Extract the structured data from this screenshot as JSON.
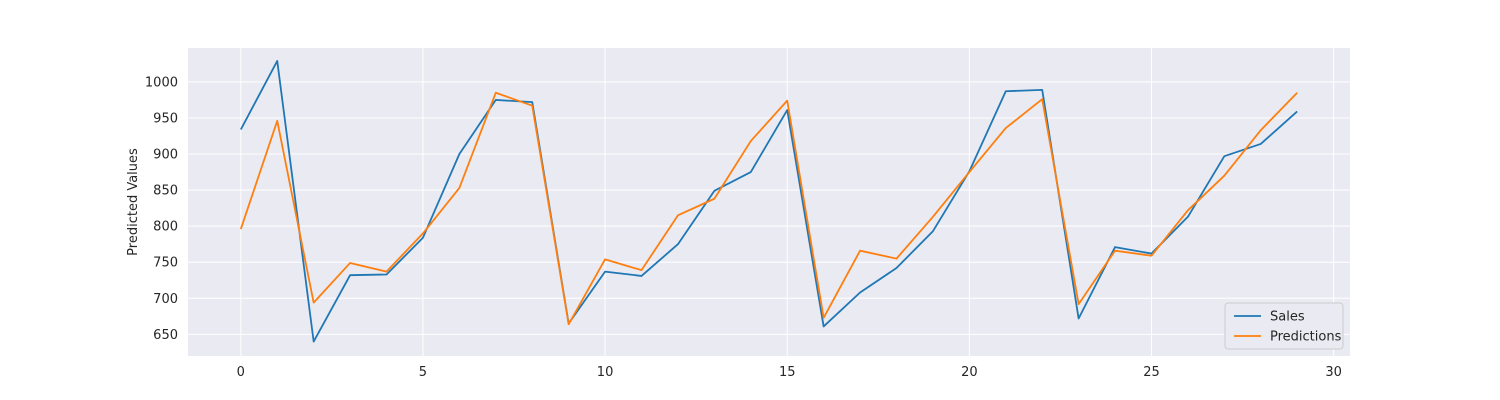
{
  "chart_data": {
    "type": "line",
    "title": "",
    "xlabel": "",
    "ylabel": "Predicted Values",
    "xlim": [
      -1.45,
      30.45
    ],
    "ylim": [
      620,
      1047
    ],
    "xticks": [
      0,
      5,
      10,
      15,
      20,
      25,
      30
    ],
    "yticks": [
      650,
      700,
      750,
      800,
      850,
      900,
      950,
      1000
    ],
    "grid": true,
    "legend_position": "lower-right",
    "x": [
      0,
      1,
      2,
      3,
      4,
      5,
      6,
      7,
      8,
      9,
      10,
      11,
      12,
      13,
      14,
      15,
      16,
      17,
      18,
      19,
      20,
      21,
      22,
      23,
      24,
      25,
      26,
      27,
      28,
      29
    ],
    "series": [
      {
        "name": "Sales",
        "color": "#1f77b4",
        "values": [
          934,
          1029,
          640,
          732,
          733,
          784,
          900,
          975,
          972,
          665,
          737,
          731,
          775,
          849,
          875,
          961,
          661,
          708,
          742,
          793,
          876,
          987,
          989,
          672,
          771,
          762,
          813,
          897,
          914,
          959
        ]
      },
      {
        "name": "Predictions",
        "color": "#ff7f0e",
        "values": [
          796,
          946,
          694,
          749,
          737,
          790,
          853,
          985,
          967,
          664,
          754,
          739,
          815,
          838,
          918,
          974,
          673,
          766,
          755,
          813,
          875,
          936,
          976,
          692,
          766,
          759,
          822,
          870,
          933,
          985
        ]
      }
    ],
    "colors": {
      "plot_background": "#eaeaf2",
      "grid": "#ffffff"
    }
  }
}
